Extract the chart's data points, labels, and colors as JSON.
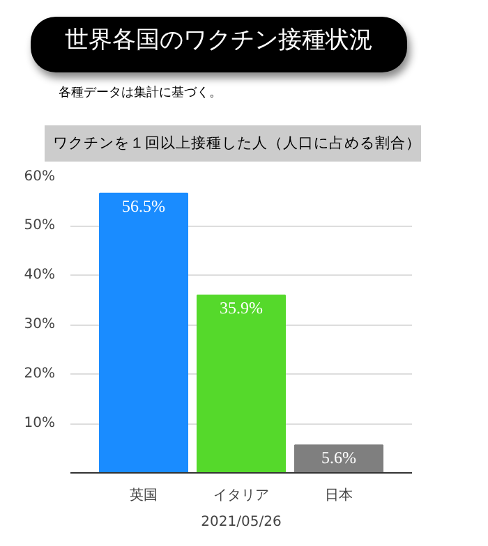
{
  "chart_data": {
    "type": "bar",
    "title": "世界各国のワクチン接種状況",
    "subtitle": "ワクチンを１回以上接種した人（人口に占める割合）",
    "annotations": [
      "各種データは集計に基づく。"
    ],
    "xlabel": "2021/05/26",
    "categories": [
      "英国",
      "イタリア",
      "日本"
    ],
    "values": [
      56.5,
      35.9,
      5.6
    ],
    "colors": [
      "#1a8cff",
      "#55d92b",
      "#7f7f7f"
    ],
    "value_labels": [
      "56.5%",
      "35.9%",
      "5.6%"
    ],
    "ylim": [
      0,
      60
    ],
    "yticks": [
      {
        "value": 0,
        "label": null
      },
      {
        "value": 10,
        "label": "10%"
      },
      {
        "value": 20,
        "label": "20%"
      },
      {
        "value": 30,
        "label": "30%"
      },
      {
        "value": 40,
        "label": "40%"
      },
      {
        "value": 50,
        "label": "50%"
      },
      {
        "value": 60,
        "label": "60%"
      }
    ],
    "grid": "y"
  }
}
